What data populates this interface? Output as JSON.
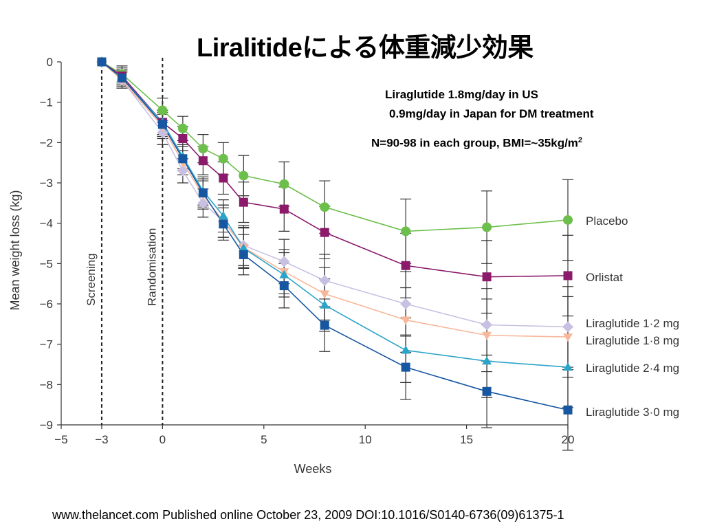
{
  "page": {
    "title": "Liralitideによる体重減少効果",
    "note_line1": "Liraglutide 1.8mg/day in US",
    "note_line2": "0.9mg/day in Japan for DM treatment",
    "note_line3_text": "N=90-98 in each group, BMI=~35kg/m",
    "note_line3_sup": "2",
    "footer": "www.thelancet.com Published online October 23, 2009 DOI:10.1016/S0140-6736(09)61375-1"
  },
  "chart_data": {
    "type": "line",
    "xlabel": "Weeks",
    "ylabel": "Mean weight loss (kg)",
    "xlim": [
      -5,
      20
    ],
    "ylim": [
      -9,
      0
    ],
    "xticks": [
      -5,
      -3,
      0,
      5,
      10,
      15,
      20
    ],
    "yticks": [
      0,
      -1,
      -2,
      -3,
      -4,
      -5,
      -6,
      -7,
      -8,
      -9
    ],
    "grid": false,
    "legend": "right",
    "vlines": [
      {
        "x": -3,
        "label": "Screening"
      },
      {
        "x": 0,
        "label": "Randomisation"
      }
    ],
    "x": [
      -3,
      -2,
      0,
      1,
      2,
      3,
      4,
      6,
      8,
      12,
      16,
      20
    ],
    "series": [
      {
        "name": "Placebo",
        "color": "#6dbf4b",
        "marker": "circle",
        "values": [
          0,
          -0.3,
          -1.2,
          -1.65,
          -2.15,
          -2.4,
          -2.82,
          -3.03,
          -3.6,
          -4.2,
          -4.1,
          -3.92
        ],
        "err": [
          0,
          0.2,
          0.3,
          0.3,
          0.35,
          0.4,
          0.5,
          0.55,
          0.65,
          0.8,
          0.9,
          1.0
        ]
      },
      {
        "name": "Orlistat",
        "color": "#8b1a6b",
        "marker": "square",
        "values": [
          0,
          -0.35,
          -1.5,
          -1.9,
          -2.45,
          -2.88,
          -3.48,
          -3.65,
          -4.23,
          -5.05,
          -5.33,
          -5.3
        ],
        "err": [
          0,
          0.2,
          0.3,
          0.3,
          0.35,
          0.4,
          0.5,
          0.55,
          0.65,
          0.8,
          0.9,
          1.0
        ]
      },
      {
        "name": "Liraglutide 1·2 mg",
        "color": "#c8c0e3",
        "marker": "diamond",
        "values": [
          0,
          -0.45,
          -1.75,
          -2.7,
          -3.5,
          -3.95,
          -4.55,
          -4.95,
          -5.42,
          -6.0,
          -6.52,
          -6.57
        ],
        "err": [
          0,
          0.2,
          0.3,
          0.3,
          0.35,
          0.4,
          0.5,
          0.55,
          0.65,
          0.8,
          0.9,
          1.0
        ]
      },
      {
        "name": "Liraglutide 1·8 mg",
        "color": "#f7b79a",
        "marker": "triangle-down",
        "values": [
          0,
          -0.45,
          -1.6,
          -2.5,
          -3.3,
          -3.95,
          -4.6,
          -5.2,
          -5.75,
          -6.4,
          -6.78,
          -6.82
        ],
        "err": [
          0,
          0.2,
          0.3,
          0.3,
          0.35,
          0.4,
          0.5,
          0.55,
          0.65,
          0.8,
          0.9,
          1.0
        ]
      },
      {
        "name": "Liraglutide 2·4 mg",
        "color": "#2aa4c8",
        "marker": "triangle-up",
        "values": [
          0,
          -0.4,
          -1.5,
          -2.35,
          -3.2,
          -3.82,
          -4.62,
          -5.28,
          -6.03,
          -7.15,
          -7.42,
          -7.57
        ],
        "err": [
          0,
          0.2,
          0.3,
          0.3,
          0.35,
          0.4,
          0.5,
          0.55,
          0.65,
          0.8,
          0.9,
          1.0
        ]
      },
      {
        "name": "Liraglutide 3·0 mg",
        "color": "#1756a0",
        "marker": "square",
        "values": [
          0,
          -0.4,
          -1.55,
          -2.4,
          -3.25,
          -4.02,
          -4.78,
          -5.55,
          -6.53,
          -7.57,
          -8.17,
          -8.63
        ],
        "err": [
          0,
          0.2,
          0.3,
          0.3,
          0.35,
          0.4,
          0.5,
          0.55,
          0.65,
          0.8,
          0.9,
          1.0
        ]
      }
    ]
  }
}
